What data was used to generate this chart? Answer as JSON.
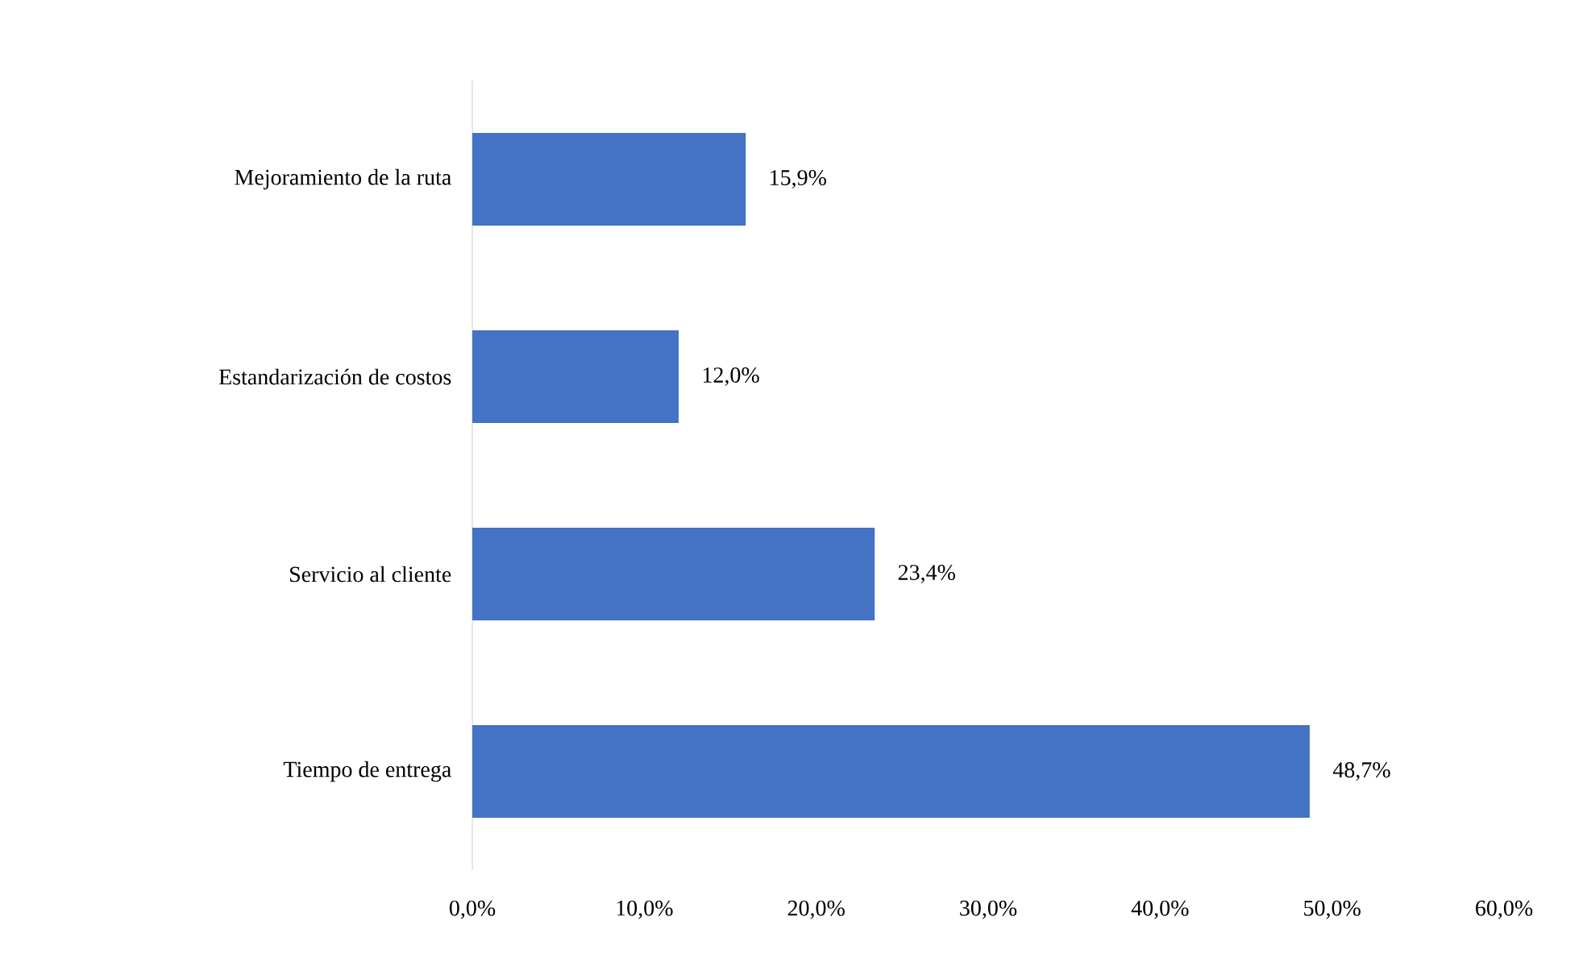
{
  "chart_data": {
    "type": "bar",
    "orientation": "horizontal",
    "categories": [
      "Mejoramiento de la ruta",
      "Estandarización de costos",
      "Servicio al cliente",
      "Tiempo de entrega"
    ],
    "values": [
      15.9,
      12.0,
      23.4,
      48.7
    ],
    "value_labels": [
      "15,9%",
      "12,0%",
      "23,4%",
      "48,7%"
    ],
    "color": "#4472c4",
    "xlim": [
      0,
      60
    ],
    "xticks": [
      {
        "value": 0,
        "label": "0,0%"
      },
      {
        "value": 10,
        "label": "10,0%"
      },
      {
        "value": 20,
        "label": "20,0%"
      },
      {
        "value": 30,
        "label": "30,0%"
      },
      {
        "value": 40,
        "label": "40,0%"
      },
      {
        "value": 50,
        "label": "50,0%"
      },
      {
        "value": 60,
        "label": "60,0%"
      }
    ],
    "grid": false
  }
}
